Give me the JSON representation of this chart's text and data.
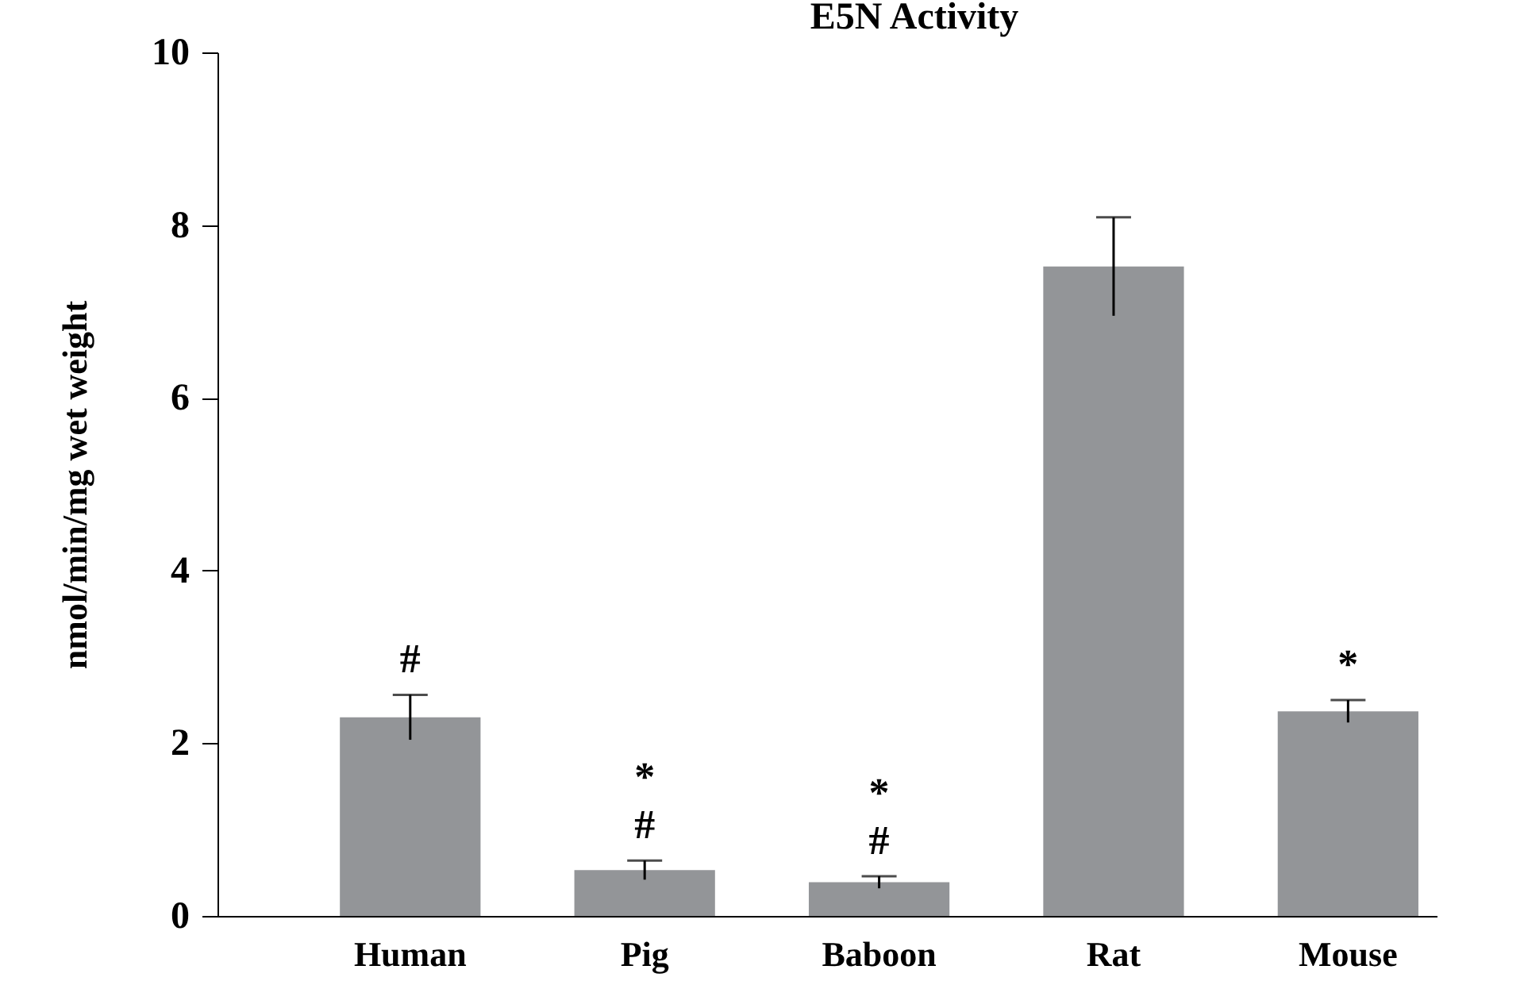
{
  "chart_data": {
    "type": "bar",
    "title": "E5N Activity",
    "ylabel": "nmol/min/mg wet weight",
    "categories": [
      "Human",
      "Pig",
      "Baboon",
      "Rat",
      "Mouse"
    ],
    "values": [
      2.3,
      0.53,
      0.39,
      7.52,
      2.37
    ],
    "errors": [
      0.26,
      0.11,
      0.07,
      0.57,
      0.13
    ],
    "color": "#939598",
    "ylim": [
      0,
      10
    ],
    "yticks": [
      0,
      2,
      4,
      6,
      8,
      10
    ],
    "grid": false,
    "annotations": [
      {
        "text": "#",
        "x": "Human",
        "y": 2.3
      },
      {
        "text": "#",
        "x": "Pig",
        "y": 0.53
      },
      {
        "text": "*",
        "x": "Pig",
        "y": 0.53
      },
      {
        "text": "#",
        "x": "Baboon",
        "y": 0.39
      },
      {
        "text": "*",
        "x": "Baboon",
        "y": 0.39
      },
      {
        "text": "*",
        "x": "Mouse",
        "y": 2.37
      }
    ]
  }
}
